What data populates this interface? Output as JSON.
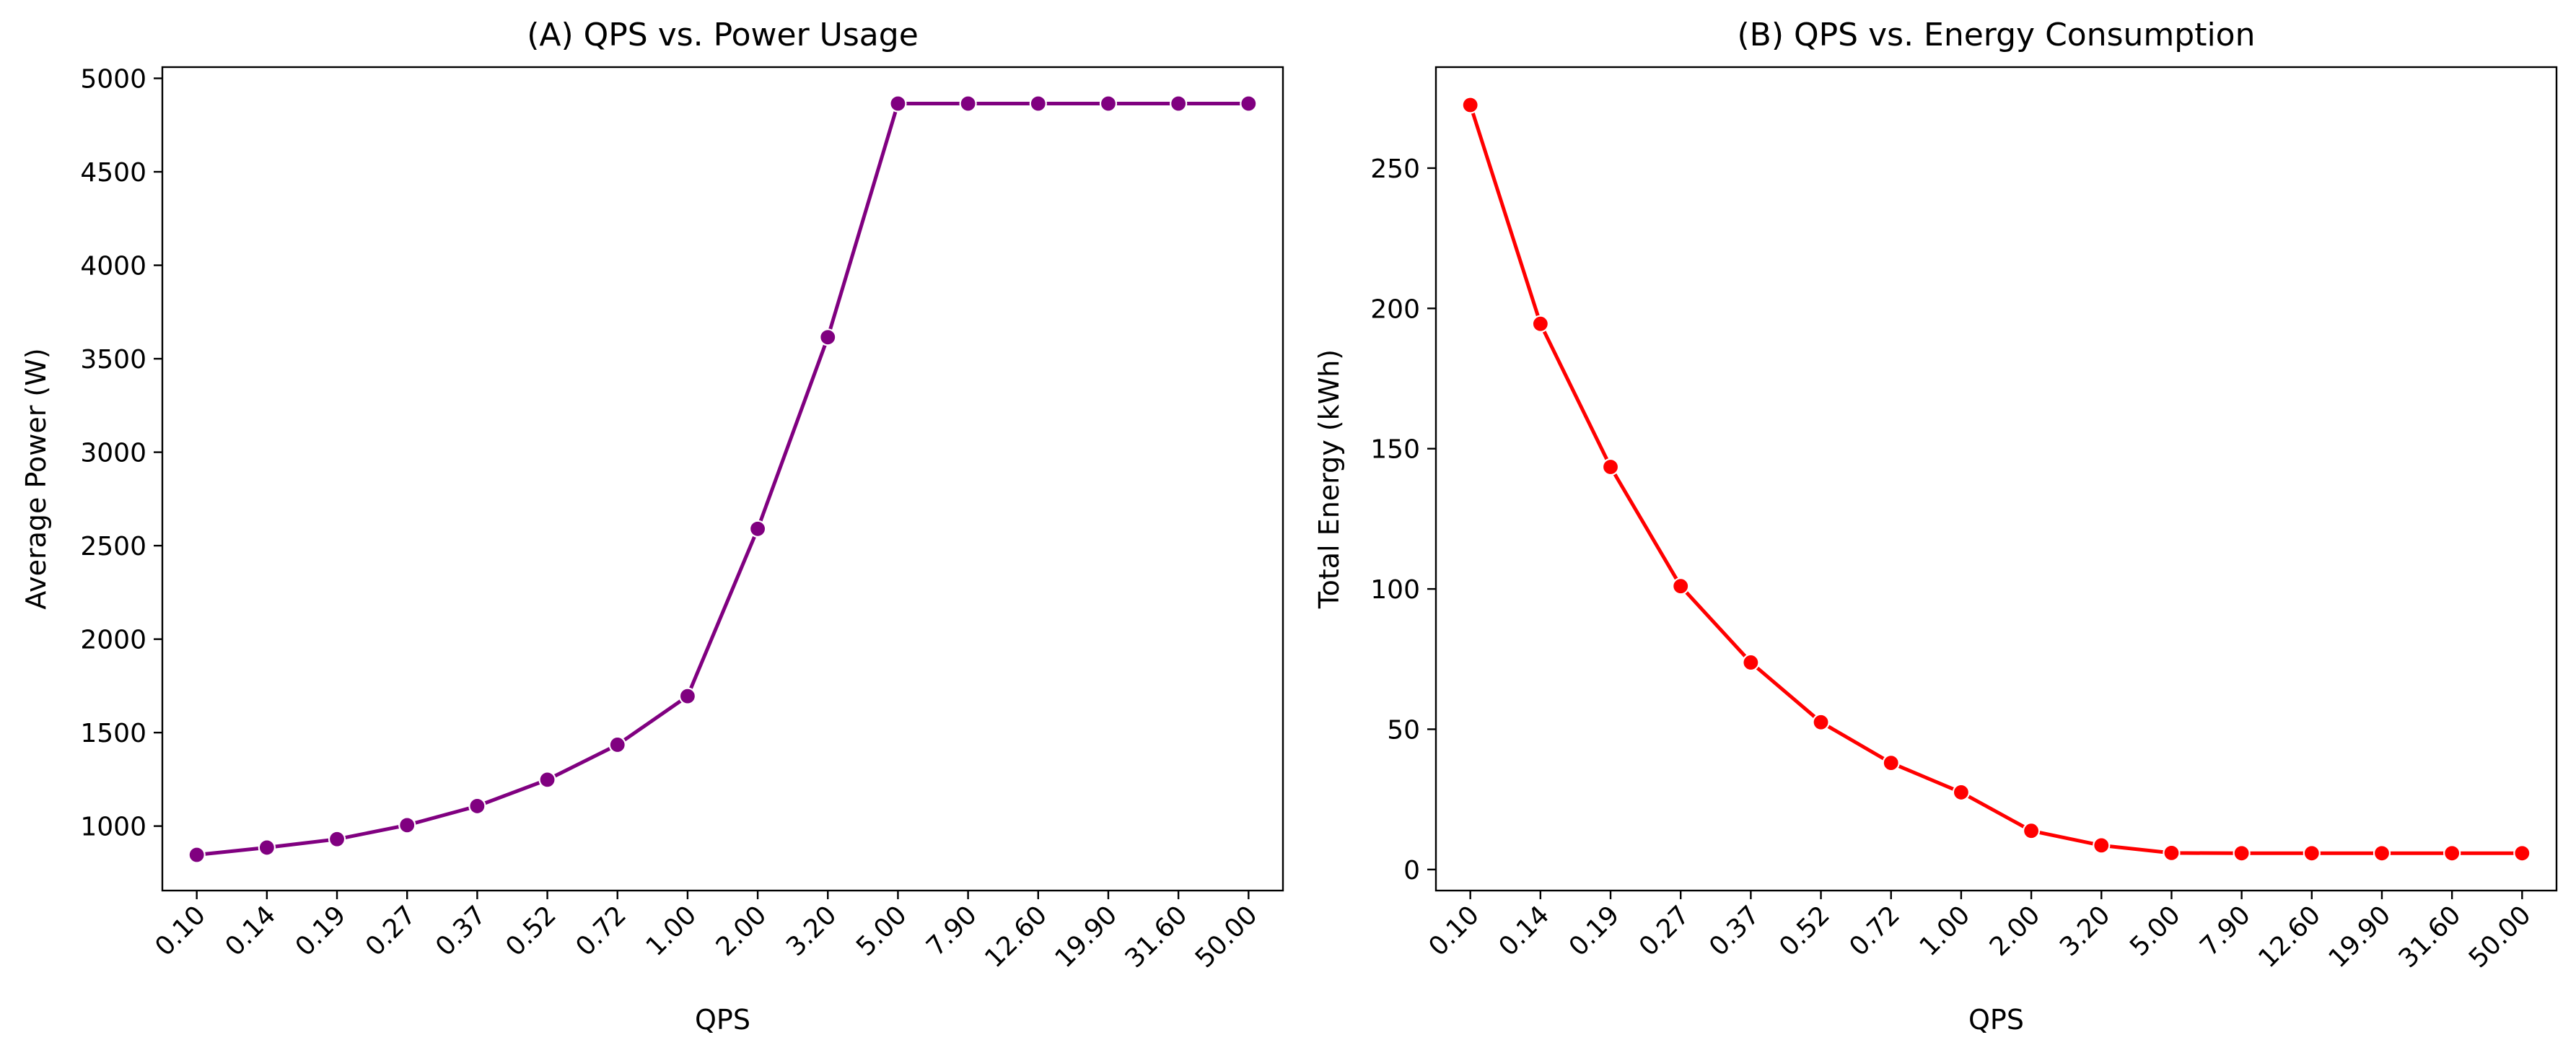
{
  "chart_data": [
    {
      "type": "line",
      "title": "(A) QPS vs. Power Usage",
      "xlabel": "QPS",
      "ylabel": "Average Power (W)",
      "categories": [
        "0.10",
        "0.14",
        "0.19",
        "0.27",
        "0.37",
        "0.52",
        "0.72",
        "1.00",
        "2.00",
        "3.20",
        "5.00",
        "7.90",
        "12.60",
        "19.90",
        "31.60",
        "50.00"
      ],
      "series": [
        {
          "values": [
            846,
            885,
            930,
            1005,
            1107,
            1248,
            1435,
            1695,
            2590,
            3615,
            4865,
            4865,
            4865,
            4865,
            4865,
            4865
          ],
          "color": "#800080"
        }
      ],
      "ylim": [
        655,
        5060
      ],
      "yticks": [
        1000,
        1500,
        2000,
        2500,
        3000,
        3500,
        4000,
        4500,
        5000
      ],
      "grid": false,
      "legend": "none"
    },
    {
      "type": "line",
      "title": "(B) QPS vs. Energy Consumption",
      "xlabel": "QPS",
      "ylabel": "Total Energy (kWh)",
      "categories": [
        "0.10",
        "0.14",
        "0.19",
        "0.27",
        "0.37",
        "0.52",
        "0.72",
        "1.00",
        "2.00",
        "3.20",
        "5.00",
        "7.90",
        "12.60",
        "19.90",
        "31.60",
        "50.00"
      ],
      "series": [
        {
          "values": [
            272.5,
            194.5,
            143.5,
            101.0,
            73.8,
            52.5,
            38.0,
            27.5,
            13.8,
            8.6,
            5.9,
            5.8,
            5.8,
            5.8,
            5.8,
            5.8
          ],
          "color": "#ff0000"
        }
      ],
      "ylim": [
        -7.5,
        286
      ],
      "yticks": [
        0,
        50,
        100,
        150,
        200,
        250
      ],
      "grid": false,
      "legend": "none"
    }
  ]
}
